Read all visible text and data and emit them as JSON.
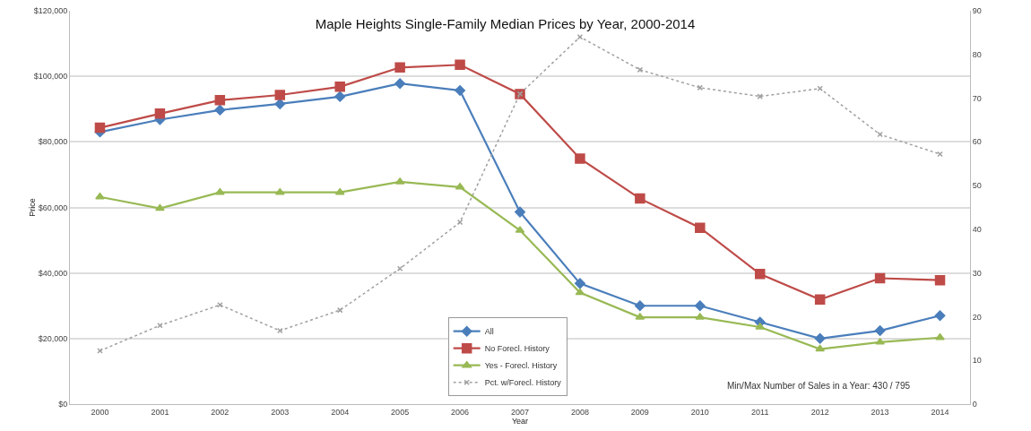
{
  "chart_data": {
    "type": "line",
    "title": "Maple Heights Single-Family Median Prices by Year, 2000-2014",
    "xlabel": "Year",
    "ylabel": "Price",
    "categories": [
      "2000",
      "2001",
      "2002",
      "2003",
      "2004",
      "2005",
      "2006",
      "2007",
      "2008",
      "2009",
      "2010",
      "2011",
      "2012",
      "2013",
      "2014"
    ],
    "series": [
      {
        "name": "All",
        "color": "#4a7ebb",
        "marker": "diamond",
        "values": [
          83000,
          86800,
          89700,
          91600,
          93800,
          97800,
          95700,
          58600,
          36800,
          30000,
          30000,
          25000,
          20000,
          22400,
          27000
        ]
      },
      {
        "name": "No Forecl. History",
        "color": "#be4b48",
        "marker": "square",
        "values": [
          84300,
          88600,
          92700,
          94300,
          96800,
          102700,
          103500,
          94600,
          74900,
          62700,
          53800,
          39700,
          31900,
          38400,
          37800
        ]
      },
      {
        "name": "Yes - Forecl. History",
        "color": "#98b954",
        "marker": "triangle",
        "values": [
          63200,
          59700,
          64600,
          64600,
          64600,
          67800,
          66200,
          53000,
          34000,
          26500,
          26500,
          23500,
          16800,
          18900,
          20300
        ]
      },
      {
        "name": "Pct. w/Forecl. History",
        "color": "#a0a0a0",
        "marker": "cross",
        "line_style": "dotted",
        "axis": "y2",
        "values": [
          12.2,
          18,
          22.7,
          16.8,
          21.5,
          31,
          41.6,
          71,
          84,
          76.5,
          72.4,
          70.4,
          72.2,
          61.7,
          57.2
        ]
      }
    ],
    "ylim": [
      0,
      120000
    ],
    "yticks": [
      {
        "value": 0,
        "label": "$0"
      },
      {
        "value": 20000,
        "label": "$20,000"
      },
      {
        "value": 40000,
        "label": "$40,000"
      },
      {
        "value": 60000,
        "label": "$60,000"
      },
      {
        "value": 80000,
        "label": "$80,000"
      },
      {
        "value": 100000,
        "label": "$100,000"
      },
      {
        "value": 120000,
        "label": "$120,000"
      }
    ],
    "y2lim": [
      0,
      90
    ],
    "y2ticks": [
      0,
      10,
      20,
      30,
      40,
      50,
      60,
      70,
      80,
      90
    ],
    "grid": "y",
    "legend": "bottom",
    "line_style": "solid",
    "annotations": [
      "Min/Max Number of Sales in a Year: 430 / 795"
    ]
  }
}
